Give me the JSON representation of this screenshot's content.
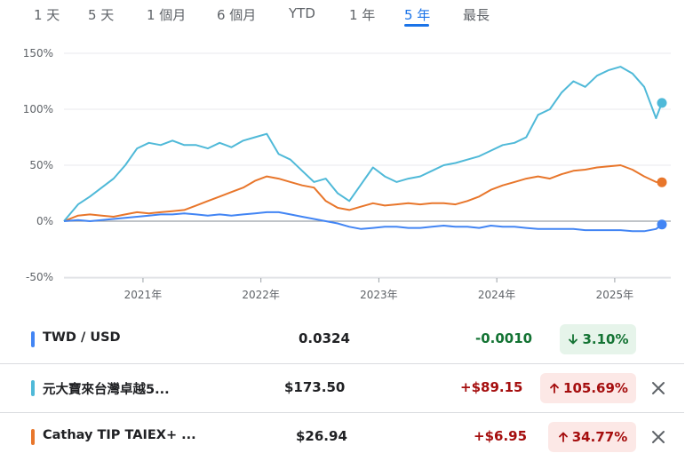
{
  "tabs": [
    {
      "label": "1 天",
      "active": false
    },
    {
      "label": "5 天",
      "active": false
    },
    {
      "label": "1 個月",
      "active": false
    },
    {
      "label": "6 個月",
      "active": false
    },
    {
      "label": "YTD",
      "active": false
    },
    {
      "label": "1 年",
      "active": false
    },
    {
      "label": "5 年",
      "active": true
    },
    {
      "label": "最長",
      "active": false
    }
  ],
  "legend": [
    {
      "name": "TWD / USD",
      "price": "0.0324",
      "change": "-0.0010",
      "change_color": "#137333",
      "pct": "3.10%",
      "direction": "down",
      "color": "#4285f4",
      "removable": false
    },
    {
      "name": "元大寶來台灣卓越5...",
      "price": "$173.50",
      "change": "+$89.15",
      "change_color": "#a50e0e",
      "pct": "105.69%",
      "direction": "up",
      "color": "#4fb9d8",
      "removable": true
    },
    {
      "name": "Cathay TIP TAIEX+ ...",
      "price": "$26.94",
      "change": "+$6.95",
      "change_color": "#a50e0e",
      "pct": "34.77%",
      "direction": "up",
      "color": "#e8762b",
      "removable": true
    }
  ],
  "icons": {
    "down_arrow": "arrow-down-icon",
    "up_arrow": "arrow-up-icon",
    "close": "close-icon"
  },
  "chart_data": {
    "type": "line",
    "y_ticks": [
      "150%",
      "100%",
      "50%",
      "0%",
      "-50%"
    ],
    "y_tick_values": [
      150,
      100,
      50,
      0,
      -50
    ],
    "ylim": [
      -50,
      150
    ],
    "x_ticks": [
      "2021年",
      "2022年",
      "2023年",
      "2024年",
      "2025年"
    ],
    "x_tick_values": [
      2021.0,
      2022.0,
      2023.0,
      2024.0,
      2025.0
    ],
    "xlim": [
      2020.33,
      2025.4
    ],
    "zero_line": true,
    "series": [
      {
        "name": "TWD / USD",
        "color": "#4285f4",
        "x": [
          2020.33,
          2020.45,
          2020.55,
          2020.65,
          2020.75,
          2020.85,
          2020.95,
          2021.05,
          2021.15,
          2021.25,
          2021.35,
          2021.45,
          2021.55,
          2021.65,
          2021.75,
          2021.85,
          2021.95,
          2022.05,
          2022.15,
          2022.25,
          2022.35,
          2022.45,
          2022.55,
          2022.65,
          2022.75,
          2022.85,
          2022.95,
          2023.05,
          2023.15,
          2023.25,
          2023.35,
          2023.45,
          2023.55,
          2023.65,
          2023.75,
          2023.85,
          2023.95,
          2024.05,
          2024.15,
          2024.25,
          2024.35,
          2024.45,
          2024.55,
          2024.65,
          2024.75,
          2024.85,
          2024.95,
          2025.05,
          2025.15,
          2025.25,
          2025.35,
          2025.4
        ],
        "y": [
          0,
          1,
          0,
          1,
          2,
          3,
          4,
          5,
          6,
          6,
          7,
          6,
          5,
          6,
          5,
          6,
          7,
          8,
          8,
          6,
          4,
          2,
          0,
          -2,
          -5,
          -7,
          -6,
          -5,
          -5,
          -6,
          -6,
          -5,
          -4,
          -5,
          -5,
          -6,
          -4,
          -5,
          -5,
          -6,
          -7,
          -7,
          -7,
          -7,
          -8,
          -8,
          -8,
          -8,
          -9,
          -9,
          -7,
          -3
        ]
      },
      {
        "name": "元大寶來台灣卓越5...",
        "color": "#4fb9d8",
        "x": [
          2020.33,
          2020.45,
          2020.55,
          2020.65,
          2020.75,
          2020.85,
          2020.95,
          2021.05,
          2021.15,
          2021.25,
          2021.35,
          2021.45,
          2021.55,
          2021.65,
          2021.75,
          2021.85,
          2021.95,
          2022.05,
          2022.15,
          2022.25,
          2022.35,
          2022.45,
          2022.55,
          2022.65,
          2022.75,
          2022.85,
          2022.95,
          2023.05,
          2023.15,
          2023.25,
          2023.35,
          2023.45,
          2023.55,
          2023.65,
          2023.75,
          2023.85,
          2023.95,
          2024.05,
          2024.15,
          2024.25,
          2024.35,
          2024.45,
          2024.55,
          2024.65,
          2024.75,
          2024.85,
          2024.95,
          2025.05,
          2025.15,
          2025.25,
          2025.35,
          2025.4
        ],
        "y": [
          0,
          15,
          22,
          30,
          38,
          50,
          65,
          70,
          68,
          72,
          68,
          68,
          65,
          70,
          66,
          72,
          75,
          78,
          60,
          55,
          45,
          35,
          38,
          25,
          18,
          33,
          48,
          40,
          35,
          38,
          40,
          45,
          50,
          52,
          55,
          58,
          63,
          68,
          70,
          75,
          95,
          100,
          115,
          125,
          120,
          130,
          135,
          138,
          132,
          120,
          92,
          105.69
        ]
      },
      {
        "name": "Cathay TIP TAIEX+ ...",
        "color": "#e8762b",
        "x": [
          2020.33,
          2020.45,
          2020.55,
          2020.65,
          2020.75,
          2020.85,
          2020.95,
          2021.05,
          2021.15,
          2021.25,
          2021.35,
          2021.45,
          2021.55,
          2021.65,
          2021.75,
          2021.85,
          2021.95,
          2022.05,
          2022.15,
          2022.25,
          2022.35,
          2022.45,
          2022.55,
          2022.65,
          2022.75,
          2022.85,
          2022.95,
          2023.05,
          2023.15,
          2023.25,
          2023.35,
          2023.45,
          2023.55,
          2023.65,
          2023.75,
          2023.85,
          2023.95,
          2024.05,
          2024.15,
          2024.25,
          2024.35,
          2024.45,
          2024.55,
          2024.65,
          2024.75,
          2024.85,
          2024.95,
          2025.05,
          2025.15,
          2025.25,
          2025.35,
          2025.4
        ],
        "y": [
          0,
          5,
          6,
          5,
          4,
          6,
          8,
          7,
          8,
          9,
          10,
          14,
          18,
          22,
          26,
          30,
          36,
          40,
          38,
          35,
          32,
          30,
          18,
          12,
          10,
          13,
          16,
          14,
          15,
          16,
          15,
          16,
          16,
          15,
          18,
          22,
          28,
          32,
          35,
          38,
          40,
          38,
          42,
          45,
          46,
          48,
          49,
          50,
          46,
          40,
          35,
          34.77
        ]
      }
    ]
  }
}
